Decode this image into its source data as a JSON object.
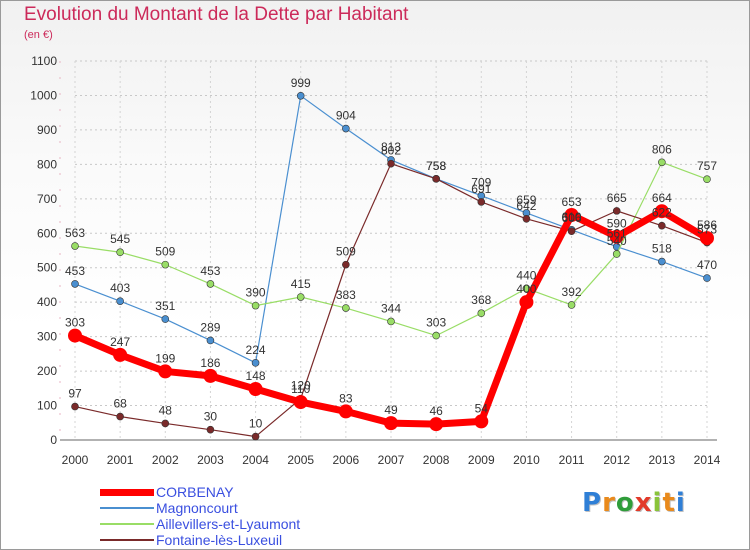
{
  "title": "Evolution du Montant de la Dette par Habitant",
  "subtitle": "(en €)",
  "brand": {
    "letters": [
      "P",
      "r",
      "o",
      "x",
      "i",
      "t",
      "i"
    ],
    "colors": [
      "#2f7fd6",
      "#e98a1c",
      "#2f9d3a",
      "#e23a2a",
      "#8ac43a",
      "#e98a1c",
      "#2f7fd6"
    ]
  },
  "chart_data": {
    "type": "line",
    "title": "Evolution du Montant de la Dette par Habitant",
    "ylabel": "(en €)",
    "xlabel": "",
    "x": [
      "2000",
      "2001",
      "2002",
      "2003",
      "2004",
      "2005",
      "2006",
      "2007",
      "2008",
      "2009",
      "2010",
      "2011",
      "2012",
      "2013",
      "2014"
    ],
    "ylim": [
      0,
      1100
    ],
    "yticks": [
      0,
      100,
      200,
      300,
      400,
      500,
      600,
      700,
      800,
      900,
      1000,
      1100
    ],
    "grid": true,
    "legend": "bottom-left",
    "series": [
      {
        "name": "CORBENAY",
        "color": "#ff0000",
        "values": [
          303,
          247,
          199,
          186,
          148,
          110,
          83,
          49,
          46,
          54,
          400,
          653,
          590,
          664,
          586
        ]
      },
      {
        "name": "Magnoncourt",
        "color": "#4a8fd0",
        "values": [
          453,
          403,
          351,
          289,
          224,
          999,
          904,
          813,
          758,
          709,
          659,
          610,
          561,
          518,
          470
        ]
      },
      {
        "name": "Aillevillers-et-Lyaumont",
        "color": "#99dd66",
        "values": [
          563,
          545,
          509,
          453,
          390,
          415,
          383,
          344,
          303,
          368,
          440,
          392,
          540,
          806,
          757
        ]
      },
      {
        "name": "Fontaine-lès-Luxeuil",
        "color": "#7a2a2a",
        "values": [
          97,
          68,
          48,
          30,
          10,
          120,
          509,
          802,
          758,
          691,
          642,
          606,
          665,
          622,
          573
        ]
      }
    ],
    "labels": [
      {
        "series": 0,
        "values": [
          "303",
          "247",
          "199",
          "186",
          "148",
          "110",
          "83",
          "49",
          "46",
          "54",
          "400",
          "653",
          "590",
          "664",
          "586"
        ]
      },
      {
        "series": 1,
        "values": [
          "453",
          "403",
          "351",
          "289",
          "224",
          "999",
          "904",
          "813",
          "758",
          "709",
          "659",
          "610",
          "561",
          "518",
          "470"
        ]
      },
      {
        "series": 2,
        "values": [
          "563",
          "545",
          "509",
          "453",
          "390",
          "415",
          "383",
          "344",
          "303",
          "368",
          "440",
          "392",
          "540",
          "806",
          "757"
        ]
      },
      {
        "series": 3,
        "values": [
          "97",
          "68",
          "48",
          "30",
          "10",
          "120",
          "509",
          "802",
          "758",
          "691",
          "642",
          "606",
          "665",
          "622",
          "573"
        ]
      }
    ]
  }
}
